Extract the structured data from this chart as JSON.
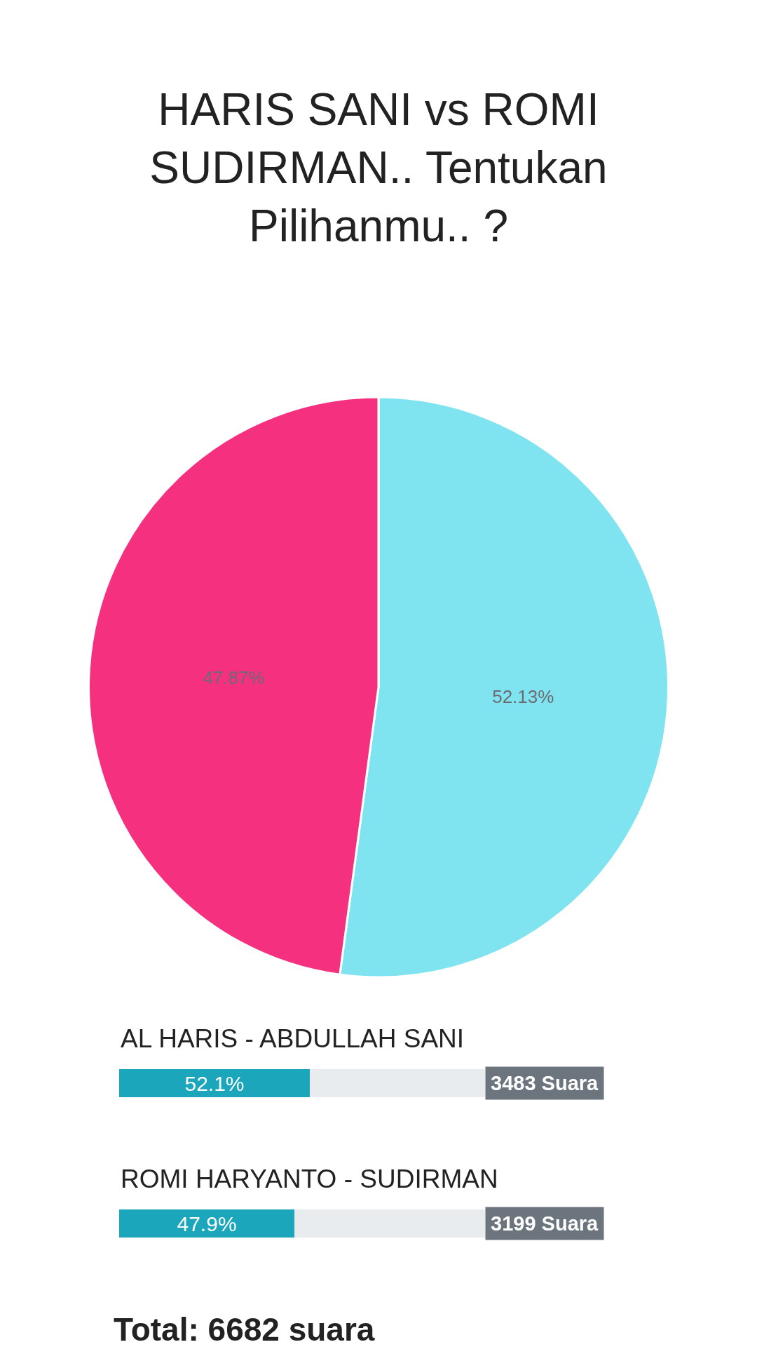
{
  "chart_data": [
    {
      "type": "pie",
      "title": "HARIS SANI vs ROMI SUDIRMAN.. Tentukan Pilihanmu.. ?",
      "categories": [
        null,
        null
      ],
      "values": [
        52.13,
        47.87
      ],
      "colors": [
        "#80e4f0",
        "#f5317f"
      ],
      "value_labels": [
        "52.13%",
        "47.87%"
      ],
      "legend": false
    },
    {
      "type": "bar",
      "orientation": "horizontal",
      "categories": [
        "AL HARIS - ABDULLAH SANI",
        "ROMI HARYANTO - SUDIRMAN"
      ],
      "values": [
        52.1,
        47.9
      ],
      "color": "#1ba6bb",
      "value_labels": [
        "52.1%",
        "47.9%"
      ],
      "xlim": [
        0,
        100
      ],
      "tick_labels": "y",
      "grid": false,
      "legend": false,
      "annotations": [
        "3483 Suara",
        "3199 Suara",
        "Total: 6682 suara"
      ]
    }
  ]
}
